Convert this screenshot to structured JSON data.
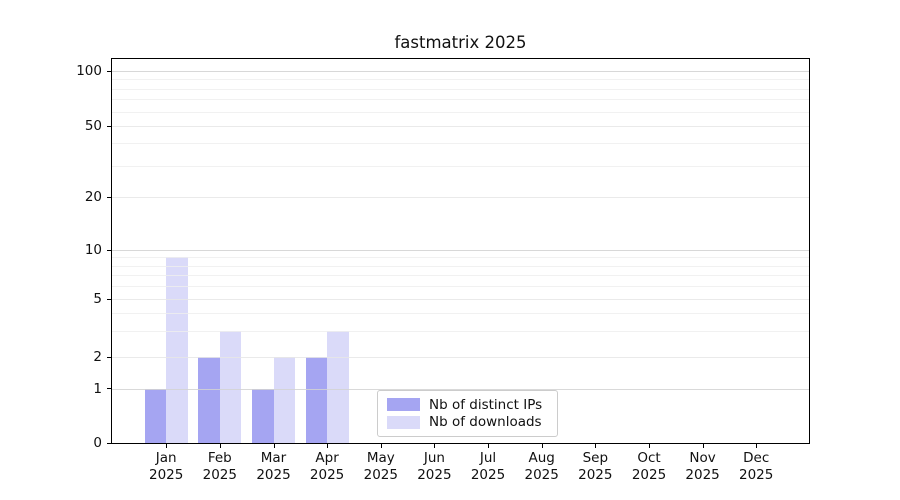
{
  "chart_data": {
    "type": "bar",
    "title": "fastmatrix 2025",
    "year": "2025",
    "months": [
      "Jan",
      "Feb",
      "Mar",
      "Apr",
      "May",
      "Jun",
      "Jul",
      "Aug",
      "Sep",
      "Oct",
      "Nov",
      "Dec"
    ],
    "series": [
      {
        "name": "Nb of distinct IPs",
        "color": "#a5a5f2",
        "values": [
          1,
          2,
          1,
          2,
          0,
          0,
          0,
          0,
          0,
          0,
          0,
          0
        ]
      },
      {
        "name": "Nb of downloads",
        "color": "#dadaf9",
        "values": [
          9,
          3,
          2,
          3,
          0,
          0,
          0,
          0,
          0,
          0,
          0,
          0
        ]
      }
    ],
    "yticks": [
      0,
      1,
      2,
      5,
      10,
      20,
      50,
      100
    ],
    "yscale": "log-like (0 pinned at baseline)",
    "ylim": [
      0,
      117
    ],
    "xlabel": "",
    "ylabel": "",
    "grid": true,
    "legend_position": "lower center"
  }
}
